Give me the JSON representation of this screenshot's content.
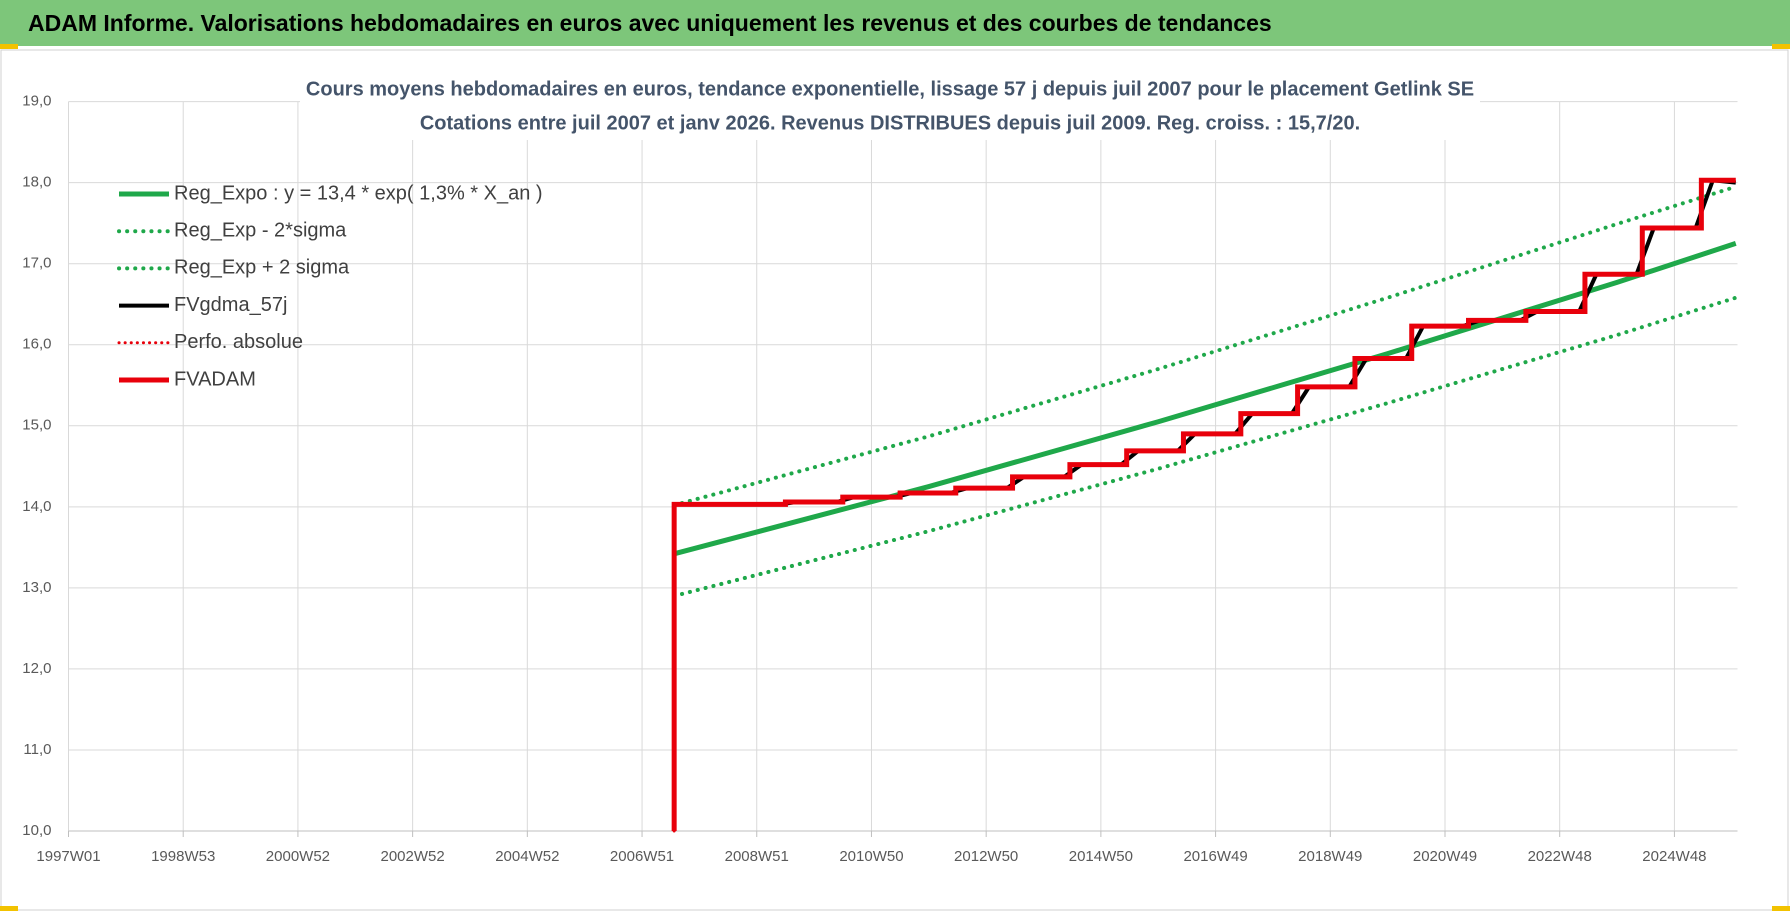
{
  "header_title": "ADAM Informe. Valorisations hebdomadaires en euros avec uniquement les revenus et des courbes de tendances",
  "chart_data": {
    "type": "line",
    "title": "Cours moyens hebdomadaires en euros, tendance exponentielle, lissage 57 j depuis juil 2007 pour le placement Getlink SE",
    "subtitle": "Cotations entre juil 2007 et janv 2026. Revenus DISTRIBUES depuis juil 2009. Reg. croiss. : 15,7/20.",
    "xlim": [
      1997,
      2026.1
    ],
    "xticks": [
      {
        "value": 1997,
        "label": "1997W01"
      },
      {
        "value": 1999,
        "label": "1998W53"
      },
      {
        "value": 2001,
        "label": "2000W52"
      },
      {
        "value": 2003,
        "label": "2002W52"
      },
      {
        "value": 2005,
        "label": "2004W52"
      },
      {
        "value": 2007,
        "label": "2006W51"
      },
      {
        "value": 2009,
        "label": "2008W51"
      },
      {
        "value": 2011,
        "label": "2010W50"
      },
      {
        "value": 2013,
        "label": "2012W50"
      },
      {
        "value": 2015,
        "label": "2014W50"
      },
      {
        "value": 2017,
        "label": "2016W49"
      },
      {
        "value": 2019,
        "label": "2018W49"
      },
      {
        "value": 2021,
        "label": "2020W49"
      },
      {
        "value": 2023,
        "label": "2022W48"
      },
      {
        "value": 2025,
        "label": "2024W48"
      }
    ],
    "ylim": [
      10,
      19
    ],
    "yticks": [
      {
        "value": 10,
        "label": "10,0"
      },
      {
        "value": 11,
        "label": "11,0"
      },
      {
        "value": 12,
        "label": "12,0"
      },
      {
        "value": 13,
        "label": "13,0"
      },
      {
        "value": 14,
        "label": "14,0"
      },
      {
        "value": 15,
        "label": "15,0"
      },
      {
        "value": 16,
        "label": "16,0"
      },
      {
        "value": 17,
        "label": "17,0"
      },
      {
        "value": 18,
        "label": "18,0"
      },
      {
        "value": 19,
        "label": "19,0"
      }
    ],
    "grid": true,
    "legend": "top-left",
    "series": [
      {
        "name": "Reg_Expo : y = 13,4 * exp( 1,3% *  X_an )",
        "color": "#1fa84a",
        "style": "solid",
        "width": 5,
        "x": [
          2007.56,
          2012,
          2016,
          2020,
          2024,
          2026.07
        ],
        "values": [
          13.42,
          14.25,
          15.05,
          15.89,
          16.77,
          17.25
        ]
      },
      {
        "name": "Reg_Exp - 2*sigma",
        "color": "#1fa84a",
        "style": "dotted",
        "width": 4,
        "x": [
          2007.56,
          2012,
          2016,
          2020,
          2024,
          2026.07
        ],
        "values": [
          12.9,
          13.7,
          14.47,
          15.28,
          16.12,
          16.58
        ]
      },
      {
        "name": "Reg_Exp + 2 sigma",
        "color": "#1fa84a",
        "style": "dotted",
        "width": 4,
        "x": [
          2007.56,
          2012,
          2016,
          2020,
          2024,
          2026.07
        ],
        "values": [
          14.02,
          14.87,
          15.7,
          16.58,
          17.49,
          17.95
        ]
      },
      {
        "name": "FVgdma_57j",
        "color": "#000000",
        "style": "solid",
        "width": 4,
        "x": [
          2007.56,
          2009.4,
          2009.7,
          2010.4,
          2010.7,
          2011.4,
          2011.7,
          2012.37,
          2012.67,
          2013.36,
          2013.66,
          2014.36,
          2014.66,
          2015.35,
          2015.65,
          2016.34,
          2016.64,
          2017.34,
          2017.64,
          2018.33,
          2018.63,
          2019.33,
          2019.63,
          2020.32,
          2020.62,
          2021.31,
          2021.61,
          2022.31,
          2022.61,
          2023.34,
          2023.64,
          2024.34,
          2024.64,
          2025.37,
          2025.67,
          2026.07
        ],
        "values": [
          14.03,
          14.03,
          14.06,
          14.06,
          14.12,
          14.12,
          14.17,
          14.17,
          14.23,
          14.23,
          14.37,
          14.37,
          14.52,
          14.52,
          14.69,
          14.69,
          14.9,
          14.9,
          15.15,
          15.15,
          15.48,
          15.48,
          15.83,
          15.83,
          16.23,
          16.23,
          16.3,
          16.3,
          16.41,
          16.41,
          16.87,
          16.87,
          17.44,
          17.44,
          18.03,
          18.0
        ]
      },
      {
        "name": "Perfo. absolue",
        "color": "#e8000b",
        "style": "dotted",
        "width": 3,
        "x": [
          2007.56,
          2007.56,
          2009.5,
          2009.5,
          2010.5,
          2010.5,
          2011.5,
          2011.5,
          2012.47,
          2012.47,
          2013.46,
          2013.46,
          2014.46,
          2014.46,
          2015.45,
          2015.45,
          2016.44,
          2016.44,
          2017.44,
          2017.44,
          2018.43,
          2018.43,
          2019.43,
          2019.43,
          2020.42,
          2020.42,
          2021.41,
          2021.41,
          2022.41,
          2022.41,
          2023.44,
          2023.44,
          2024.44,
          2024.44,
          2025.47,
          2025.47,
          2026.07
        ],
        "values": [
          10,
          14.03,
          14.03,
          14.06,
          14.06,
          14.12,
          14.12,
          14.17,
          14.17,
          14.23,
          14.23,
          14.37,
          14.37,
          14.52,
          14.52,
          14.69,
          14.69,
          14.9,
          14.9,
          15.15,
          15.15,
          15.48,
          15.48,
          15.83,
          15.83,
          16.23,
          16.23,
          16.3,
          16.3,
          16.41,
          16.41,
          16.87,
          16.87,
          17.44,
          17.44,
          18.03,
          18.03
        ]
      },
      {
        "name": "FVADAM",
        "color": "#e8000b",
        "style": "solid",
        "width": 5,
        "x": [
          2007.56,
          2007.56,
          2009.5,
          2009.5,
          2010.5,
          2010.5,
          2011.5,
          2011.5,
          2012.47,
          2012.47,
          2013.46,
          2013.46,
          2014.46,
          2014.46,
          2015.45,
          2015.45,
          2016.44,
          2016.44,
          2017.44,
          2017.44,
          2018.43,
          2018.43,
          2019.43,
          2019.43,
          2020.42,
          2020.42,
          2021.41,
          2021.41,
          2022.41,
          2022.41,
          2023.44,
          2023.44,
          2024.44,
          2024.44,
          2025.47,
          2025.47,
          2026.07
        ],
        "values": [
          10,
          14.03,
          14.03,
          14.06,
          14.06,
          14.12,
          14.12,
          14.17,
          14.17,
          14.23,
          14.23,
          14.37,
          14.37,
          14.52,
          14.52,
          14.69,
          14.69,
          14.9,
          14.9,
          15.15,
          15.15,
          15.48,
          15.48,
          15.83,
          15.83,
          16.23,
          16.23,
          16.3,
          16.3,
          16.41,
          16.41,
          16.87,
          16.87,
          17.44,
          17.44,
          18.03,
          18.03
        ]
      }
    ]
  }
}
